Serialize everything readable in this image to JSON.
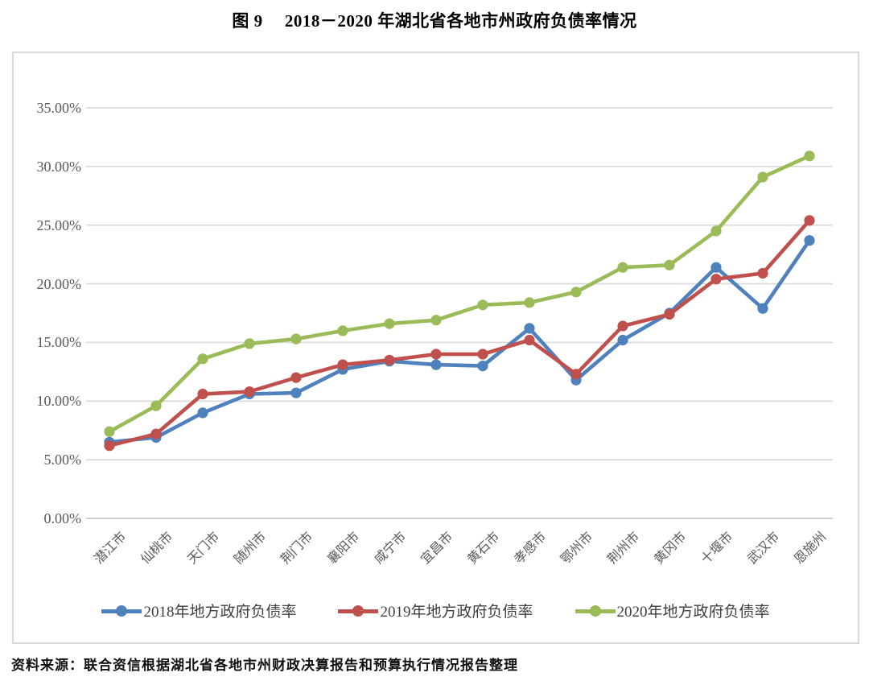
{
  "title": "图 9　 2018－2020 年湖北省各地市州政府负债率情况",
  "source": "资料来源：联合资信根据湖北省各地市州财政决算报告和预算执行情况报告整理",
  "chart_data": {
    "type": "line",
    "title": "图 9　2018－2020 年湖北省各地市州政府负债率情况",
    "categories": [
      "潜江市",
      "仙桃市",
      "天门市",
      "随州市",
      "荆门市",
      "襄阳市",
      "咸宁市",
      "宜昌市",
      "黄石市",
      "孝感市",
      "鄂州市",
      "荆州市",
      "黄冈市",
      "十堰市",
      "武汉市",
      "恩施州"
    ],
    "series": [
      {
        "name": "2018年地方政府负债率",
        "color": "#4F81BD",
        "values": [
          6.5,
          6.9,
          9.0,
          10.6,
          10.7,
          12.7,
          13.4,
          13.1,
          13.0,
          16.2,
          11.8,
          15.2,
          17.5,
          21.4,
          17.9,
          23.7
        ]
      },
      {
        "name": "2019年地方政府负债率",
        "color": "#C0504D",
        "values": [
          6.2,
          7.2,
          10.6,
          10.8,
          12.0,
          13.1,
          13.5,
          14.0,
          14.0,
          15.2,
          12.3,
          16.4,
          17.4,
          20.4,
          20.9,
          25.4
        ]
      },
      {
        "name": "2020年地方政府负债率",
        "color": "#9BBB59",
        "values": [
          7.4,
          9.6,
          13.6,
          14.9,
          15.3,
          16.0,
          16.6,
          16.9,
          18.2,
          18.4,
          19.3,
          21.4,
          21.6,
          24.5,
          29.1,
          30.9
        ]
      }
    ],
    "ylim": [
      0,
      35
    ],
    "ytick_step": 5,
    "ytick_labels": [
      "0.00%",
      "5.00%",
      "10.00%",
      "15.00%",
      "20.00%",
      "25.00%",
      "30.00%",
      "35.00%"
    ],
    "grid": true,
    "legend_position": "bottom",
    "colors": {
      "gridline": "#D9D9D9",
      "axis_line": "#BFBFBF",
      "tick_label": "#595959",
      "legend_text": "#3F3F3F"
    }
  }
}
